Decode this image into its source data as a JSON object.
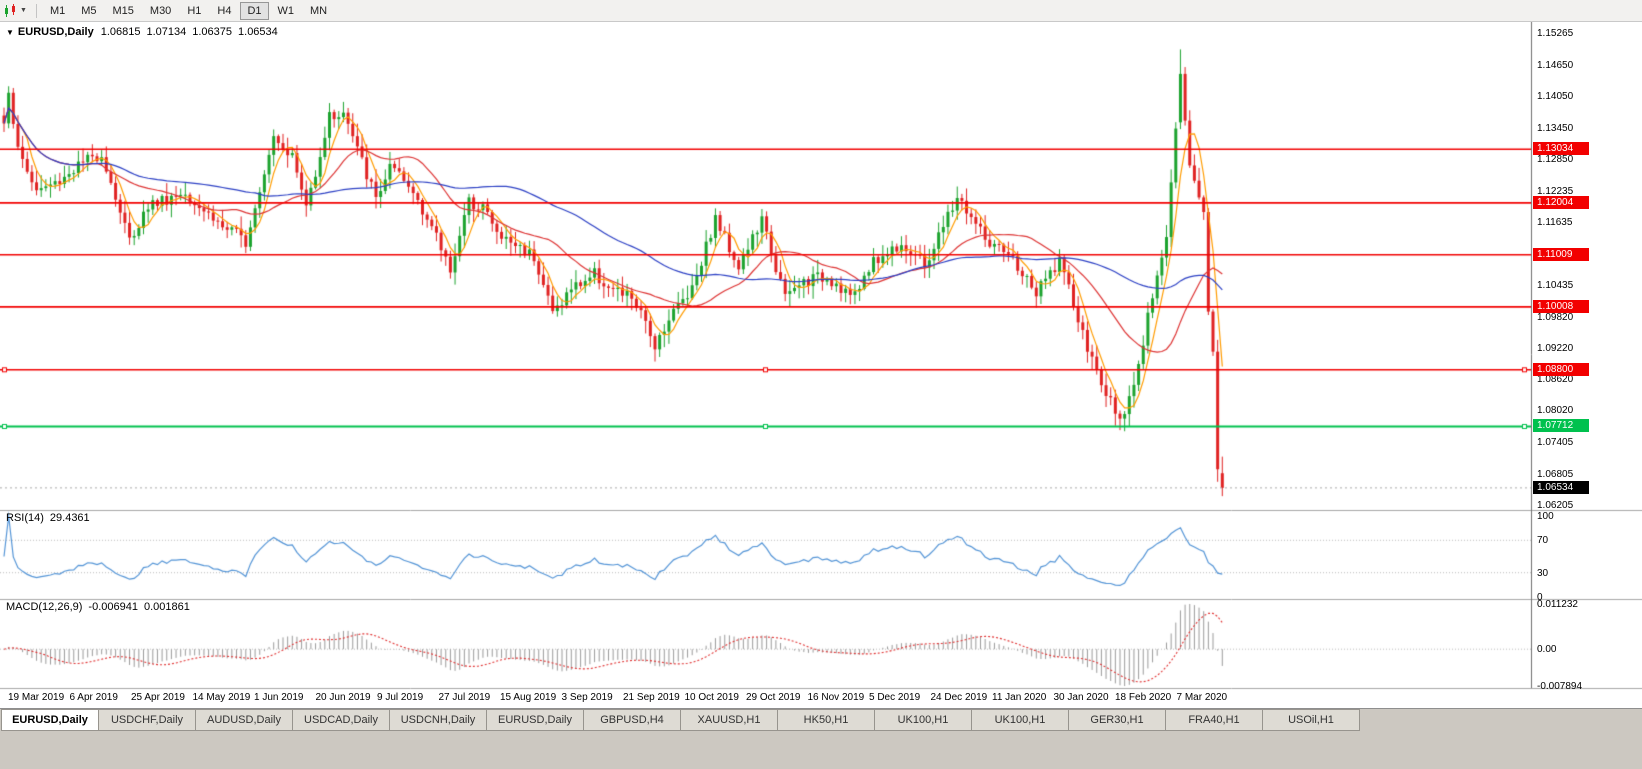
{
  "toolbar": {
    "timeframes": [
      "M1",
      "M5",
      "M15",
      "M30",
      "H1",
      "H4",
      "D1",
      "W1",
      "MN"
    ],
    "active_timeframe": "D1"
  },
  "tabs": {
    "active_index": 0,
    "items": [
      "EURUSD,Daily",
      "USDCHF,Daily",
      "AUDUSD,Daily",
      "USDCAD,Daily",
      "USDCNH,Daily",
      "EURUSD,Daily",
      "GBPUSD,H4",
      "XAUUSD,H1",
      "HK50,H1",
      "UK100,H1",
      "UK100,H1",
      "GER30,H1",
      "FRA40,H1",
      "USOil,H1"
    ]
  },
  "colors": {
    "up_candle": "#1ca32e",
    "down_candle": "#e02222",
    "ma_fast": "#ff9c00",
    "ma_mid": "#dd3333",
    "ma_slow": "#2b3fc4",
    "sr_red": "#f20000",
    "sr_green": "#00c14e",
    "current_price_badge": "#000000",
    "rsi_line": "#5394d6",
    "macd_hist": "#9a9a9a",
    "macd_signal": "#e03030"
  },
  "chart_data": {
    "type": "candlestick",
    "symbol": "EURUSD",
    "timeframe": "Daily",
    "symbol_label": "EURUSD,Daily",
    "collapse_icon": "▼",
    "ohlc": {
      "open": "1.06815",
      "high": "1.07134",
      "low": "1.06375",
      "close": "1.06534"
    },
    "y_range": [
      1.0614,
      1.155
    ],
    "y_axis_ticks": [
      "1.15265",
      "1.14650",
      "1.14050",
      "1.13450",
      "1.12850",
      "1.12235",
      "1.11635",
      "1.10435",
      "1.09820",
      "1.09220",
      "1.08620",
      "1.08020",
      "1.07405",
      "1.06805",
      "1.06205"
    ],
    "x_axis_labels": [
      "19 Mar 2019",
      "6 Apr 2019",
      "25 Apr 2019",
      "14 May 2019",
      "1 Jun 2019",
      "20 Jun 2019",
      "9 Jul 2019",
      "27 Jul 2019",
      "15 Aug 2019",
      "3 Sep 2019",
      "21 Sep 2019",
      "10 Oct 2019",
      "29 Oct 2019",
      "16 Nov 2019",
      "5 Dec 2019",
      "24 Dec 2019",
      "11 Jan 2020",
      "30 Jan 2020",
      "18 Feb 2020",
      "7 Mar 2020"
    ],
    "horizontal_levels": [
      {
        "price": 1.13034,
        "label": "1.13034",
        "color": "red"
      },
      {
        "price": 1.12004,
        "label": "1.12004",
        "color": "red"
      },
      {
        "price": 1.11009,
        "label": "1.11009",
        "color": "red"
      },
      {
        "price": 1.10008,
        "label": "1.10008",
        "color": "red"
      },
      {
        "price": 1.088,
        "label": "1.08800",
        "color": "red",
        "handles": true
      },
      {
        "price": 1.07712,
        "label": "1.07712",
        "color": "green",
        "handles": true
      }
    ],
    "current_price": {
      "price": 1.06534,
      "label": "1.06534"
    },
    "indicators": {
      "rsi": {
        "name": "RSI(14)",
        "value": "29.4361",
        "period": 14,
        "levels": [
          70,
          30
        ],
        "axis_labels": [
          {
            "label": "100",
            "value": 100
          },
          {
            "label": "70",
            "value": 70
          },
          {
            "label": "30",
            "value": 30
          },
          {
            "label": "0",
            "value": 0
          }
        ]
      },
      "macd": {
        "name": "MACD(12,26,9)",
        "value_main": "-0.006941",
        "value_signal": "0.001861",
        "fast": 12,
        "slow": 26,
        "signal": 9,
        "axis_labels": [
          {
            "label": "0.011232",
            "value": 0.011232
          },
          {
            "label": "0.00",
            "value": 0
          },
          {
            "label": "-0.007894",
            "value": -0.007894
          }
        ]
      }
    },
    "moving_averages": [
      {
        "period": 5,
        "color_key": "ma_fast"
      },
      {
        "period": 21,
        "color_key": "ma_mid"
      },
      {
        "period": 55,
        "color_key": "ma_slow"
      }
    ],
    "price_anchors": [
      [
        0,
        1.1353
      ],
      [
        1,
        1.142
      ],
      [
        3,
        1.13
      ],
      [
        7,
        1.1224
      ],
      [
        11,
        1.1238
      ],
      [
        16,
        1.1272
      ],
      [
        21,
        1.1296
      ],
      [
        27,
        1.1128
      ],
      [
        31,
        1.1196
      ],
      [
        39,
        1.1222
      ],
      [
        47,
        1.1155
      ],
      [
        52,
        1.1128
      ],
      [
        58,
        1.1333
      ],
      [
        62,
        1.129
      ],
      [
        65,
        1.1193
      ],
      [
        70,
        1.1366
      ],
      [
        73,
        1.1373
      ],
      [
        80,
        1.1208
      ],
      [
        83,
        1.1268
      ],
      [
        89,
        1.121
      ],
      [
        96,
        1.1075
      ],
      [
        100,
        1.12
      ],
      [
        103,
        1.1198
      ],
      [
        106,
        1.114
      ],
      [
        114,
        1.11
      ],
      [
        118,
        1.099
      ],
      [
        122,
        1.1035
      ],
      [
        127,
        1.1065
      ],
      [
        131,
        1.103
      ],
      [
        135,
        1.102
      ],
      [
        140,
        1.093
      ],
      [
        143,
        1.098
      ],
      [
        148,
        1.104
      ],
      [
        153,
        1.117
      ],
      [
        158,
        1.108
      ],
      [
        163,
        1.1166
      ],
      [
        168,
        1.1018
      ],
      [
        172,
        1.105
      ],
      [
        177,
        1.106
      ],
      [
        183,
        1.1018
      ],
      [
        186,
        1.108
      ],
      [
        193,
        1.1125
      ],
      [
        198,
        1.1078
      ],
      [
        205,
        1.1212
      ],
      [
        212,
        1.112
      ],
      [
        217,
        1.109
      ],
      [
        222,
        1.1025
      ],
      [
        227,
        1.1093
      ],
      [
        232,
        1.0945
      ],
      [
        237,
        1.083
      ],
      [
        241,
        1.0785
      ],
      [
        244,
        1.088
      ],
      [
        247,
        1.1026
      ],
      [
        250,
        1.1135
      ],
      [
        253,
        1.1448
      ],
      [
        255,
        1.127
      ],
      [
        258,
        1.1184
      ],
      [
        259,
        1.0995
      ],
      [
        260,
        1.0918
      ],
      [
        261,
        1.0693
      ],
      [
        262,
        1.0653
      ]
    ],
    "candle_overrides": {
      "253": {
        "o": 1.1355,
        "h": 1.1495,
        "l": 1.1342,
        "c": 1.1448
      },
      "262": {
        "o": 1.06815,
        "h": 1.07134,
        "l": 1.06375,
        "c": 1.06534
      }
    }
  }
}
